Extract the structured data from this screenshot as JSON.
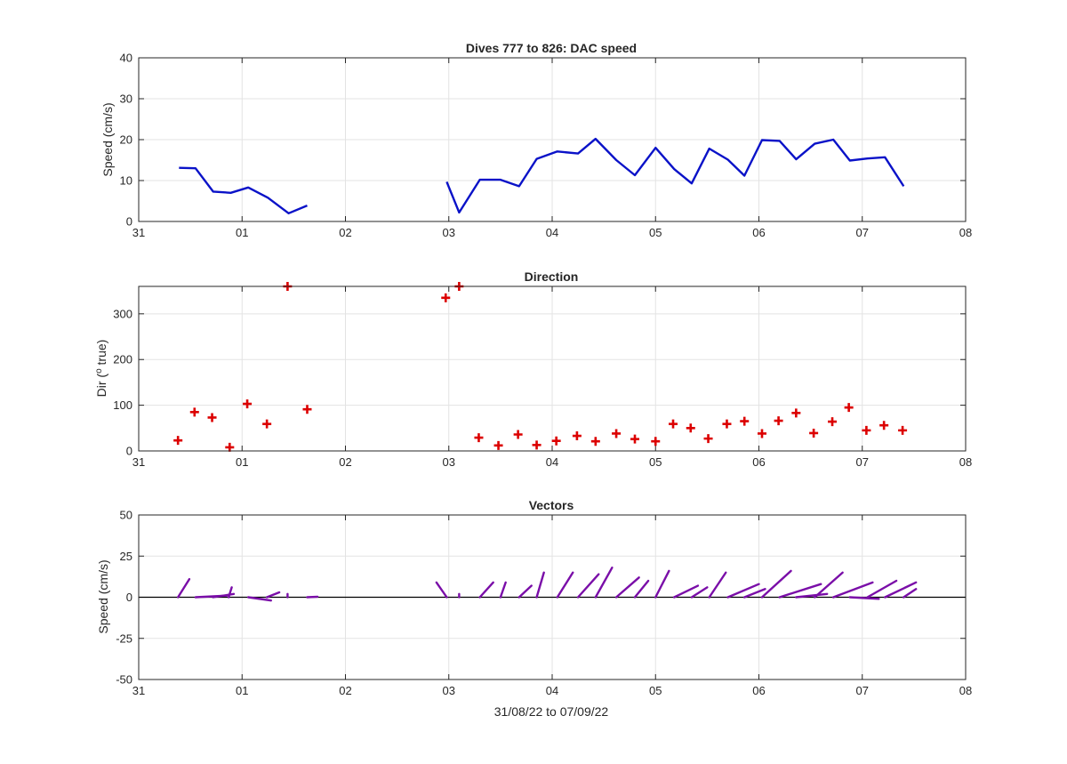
{
  "colors": {
    "speed_line": "#0a12c8",
    "direction_marker": "#dc0000",
    "vector_stick": "#7a0ea8",
    "zero_line": "#000000",
    "grid": "#e3e3e3",
    "axes": "#262626"
  },
  "chart_data": [
    {
      "type": "line",
      "title": "Dives 777 to 826: DAC speed",
      "xlabel": "",
      "ylabel": "Speed (cm/s)",
      "xlim": [
        0,
        8
      ],
      "ylim": [
        0,
        40
      ],
      "x_unit": "days since 31/08/22",
      "xtick_values": [
        0,
        1,
        2,
        3,
        4,
        5,
        6,
        7,
        8
      ],
      "xtick_labels": [
        "31",
        "01",
        "02",
        "03",
        "04",
        "05",
        "06",
        "07",
        "08"
      ],
      "ytick_values": [
        0,
        10,
        20,
        30,
        40
      ],
      "ytick_labels": [
        "0",
        "10",
        "20",
        "30",
        "40"
      ],
      "grid": true,
      "series": [
        {
          "segments": [
            {
              "x": [
                0.39,
                0.55,
                0.72,
                0.89,
                1.06,
                1.25,
                1.45,
                1.63
              ],
              "y": [
                13.1,
                13.0,
                7.3,
                7.0,
                8.3,
                5.8,
                2.0,
                3.9
              ]
            },
            {
              "x": [
                2.98,
                3.1,
                3.3,
                3.5,
                3.68,
                3.85,
                4.05,
                4.25,
                4.42,
                4.62,
                4.8,
                5.0,
                5.18,
                5.35,
                5.52,
                5.7,
                5.86,
                6.03,
                6.2,
                6.36,
                6.54,
                6.72,
                6.88,
                7.05,
                7.22,
                7.4
              ],
              "y": [
                9.7,
                2.2,
                10.2,
                10.2,
                8.6,
                15.3,
                17.1,
                16.6,
                20.2,
                15.0,
                11.3,
                18.0,
                12.8,
                9.3,
                17.8,
                15.1,
                11.2,
                19.9,
                19.7,
                15.2,
                19.0,
                20.0,
                14.9,
                15.4,
                15.7,
                8.6
              ]
            }
          ]
        }
      ]
    },
    {
      "type": "scatter",
      "title": "Direction",
      "xlabel": "",
      "ylabel": "Dir (",
      "ylabel_sup": "o",
      "ylabel_tail": " true)",
      "xlim": [
        0,
        8
      ],
      "ylim": [
        0,
        360
      ],
      "xtick_values": [
        0,
        1,
        2,
        3,
        4,
        5,
        6,
        7,
        8
      ],
      "xtick_labels": [
        "31",
        "01",
        "02",
        "03",
        "04",
        "05",
        "06",
        "07",
        "08"
      ],
      "ytick_values": [
        0,
        100,
        200,
        300
      ],
      "ytick_labels": [
        "0",
        "100",
        "200",
        "300"
      ],
      "grid": true,
      "marker": "+",
      "points": {
        "x": [
          0.38,
          0.54,
          0.71,
          0.88,
          1.05,
          1.24,
          1.44,
          1.63,
          2.97,
          3.1,
          3.29,
          3.48,
          3.67,
          3.85,
          4.04,
          4.24,
          4.42,
          4.62,
          4.8,
          5.0,
          5.17,
          5.34,
          5.51,
          5.69,
          5.86,
          6.03,
          6.19,
          6.36,
          6.53,
          6.71,
          6.87,
          7.04,
          7.21,
          7.39
        ],
        "y": [
          23,
          85,
          73,
          8,
          103,
          59,
          360,
          91,
          335,
          360,
          29,
          12,
          36,
          13,
          22,
          33,
          21,
          38,
          26,
          21,
          59,
          50,
          27,
          59,
          65,
          38,
          66,
          83,
          39,
          64,
          95,
          45,
          56,
          45
        ]
      }
    },
    {
      "type": "vector",
      "title": "Vectors",
      "xlabel": "31/08/22 to 07/09/22",
      "ylabel": "Speed (cm/s)",
      "xlim": [
        0,
        8
      ],
      "ylim": [
        -50,
        50
      ],
      "xtick_values": [
        0,
        1,
        2,
        3,
        4,
        5,
        6,
        7,
        8
      ],
      "xtick_labels": [
        "31",
        "01",
        "02",
        "03",
        "04",
        "05",
        "06",
        "07",
        "08"
      ],
      "ytick_values": [
        -50,
        -25,
        0,
        25,
        50
      ],
      "ytick_labels": [
        "-50",
        "-25",
        "0",
        "25",
        "50"
      ],
      "grid": true,
      "vectors": [
        {
          "x": 0.38,
          "dx": 0.11,
          "dy": 11
        },
        {
          "x": 0.55,
          "dx": 0.3,
          "dy": 1.0
        },
        {
          "x": 0.72,
          "dx": 0.2,
          "dy": 2.0
        },
        {
          "x": 0.87,
          "dx": 0.03,
          "dy": 6
        },
        {
          "x": 1.06,
          "dx": 0.22,
          "dy": -2.0
        },
        {
          "x": 1.24,
          "dx": 0.12,
          "dy": 3
        },
        {
          "x": 1.44,
          "dx": 0.0,
          "dy": 2
        },
        {
          "x": 1.63,
          "dx": 0.1,
          "dy": 0.3
        },
        {
          "x": 2.98,
          "dx": -0.1,
          "dy": 9
        },
        {
          "x": 3.1,
          "dx": 0.0,
          "dy": 2
        },
        {
          "x": 3.3,
          "dx": 0.13,
          "dy": 9
        },
        {
          "x": 3.5,
          "dx": 0.05,
          "dy": 9
        },
        {
          "x": 3.68,
          "dx": 0.12,
          "dy": 7
        },
        {
          "x": 3.85,
          "dx": 0.07,
          "dy": 15
        },
        {
          "x": 4.05,
          "dx": 0.15,
          "dy": 15
        },
        {
          "x": 4.25,
          "dx": 0.2,
          "dy": 14
        },
        {
          "x": 4.42,
          "dx": 0.16,
          "dy": 18
        },
        {
          "x": 4.62,
          "dx": 0.22,
          "dy": 12
        },
        {
          "x": 4.8,
          "dx": 0.13,
          "dy": 10
        },
        {
          "x": 5.0,
          "dx": 0.13,
          "dy": 16
        },
        {
          "x": 5.18,
          "dx": 0.23,
          "dy": 7
        },
        {
          "x": 5.35,
          "dx": 0.15,
          "dy": 6
        },
        {
          "x": 5.52,
          "dx": 0.16,
          "dy": 15
        },
        {
          "x": 5.7,
          "dx": 0.3,
          "dy": 8
        },
        {
          "x": 5.86,
          "dx": 0.2,
          "dy": 5
        },
        {
          "x": 6.03,
          "dx": 0.28,
          "dy": 16
        },
        {
          "x": 6.2,
          "dx": 0.4,
          "dy": 8
        },
        {
          "x": 6.36,
          "dx": 0.3,
          "dy": 2
        },
        {
          "x": 6.54,
          "dx": 0.27,
          "dy": 15
        },
        {
          "x": 6.72,
          "dx": 0.38,
          "dy": 9
        },
        {
          "x": 6.88,
          "dx": 0.28,
          "dy": -1
        },
        {
          "x": 7.05,
          "dx": 0.28,
          "dy": 10
        },
        {
          "x": 7.22,
          "dx": 0.3,
          "dy": 9
        },
        {
          "x": 7.4,
          "dx": 0.12,
          "dy": 5
        }
      ]
    }
  ]
}
